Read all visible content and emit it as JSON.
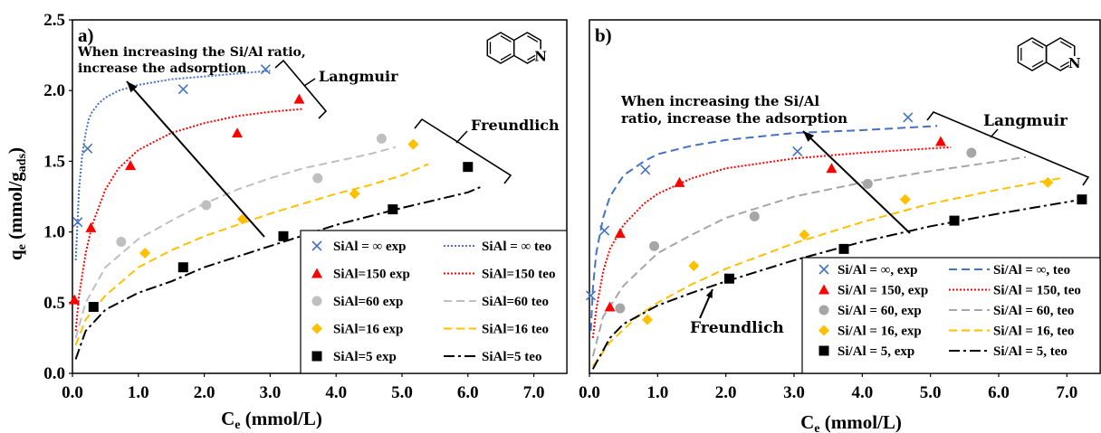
{
  "chart_data": [
    {
      "type": "scatter",
      "panel_label": "a)",
      "xlabel": "C",
      "xlabel_sub": "e",
      "xlabel_unit": " (mmol/L)",
      "ylabel": "q",
      "ylabel_sub": "e",
      "ylabel_unit": " (mmol/g",
      "ylabel_unit_sub": "ads",
      "ylabel_close": ")",
      "xlim": [
        0,
        7.5
      ],
      "ylim": [
        0,
        2.5
      ],
      "xticks": [
        "0.0",
        "1.0",
        "2.0",
        "3.0",
        "4.0",
        "5.0",
        "6.0",
        "7.0"
      ],
      "yticks": [
        "0.0",
        "0.5",
        "1.0",
        "1.5",
        "2.0",
        "2.5"
      ],
      "grid": false,
      "legend_placement": "bottom-right",
      "annotations": {
        "arrow_text": [
          "When increasing the Si/Al ratio,",
          "increase the adsorption"
        ],
        "langmuir": "Langmuir",
        "freundlich": "Freundlich",
        "molecule_atom": "N"
      },
      "series": [
        {
          "name": "SiAl = ∞ exp",
          "marker": "x",
          "color": "#4472C4",
          "x": [
            0.08,
            0.23,
            1.68,
            2.93
          ],
          "y": [
            1.07,
            1.59,
            2.01,
            2.15
          ]
        },
        {
          "name": "SiAl=150 exp",
          "marker": "triangle",
          "color": "#FF0000",
          "x": [
            0.03,
            0.28,
            0.88,
            2.5,
            3.44
          ],
          "y": [
            0.52,
            1.03,
            1.47,
            1.7,
            1.94
          ]
        },
        {
          "name": "SiAl=60 exp",
          "marker": "circle",
          "color": "#BFBFBF",
          "x": [
            0.74,
            2.03,
            3.72,
            4.69
          ],
          "y": [
            0.93,
            1.19,
            1.38,
            1.66
          ]
        },
        {
          "name": "SiAl=16 exp",
          "marker": "diamond",
          "color": "#FFC000",
          "x": [
            1.1,
            2.58,
            4.28,
            5.17
          ],
          "y": [
            0.85,
            1.09,
            1.27,
            1.62
          ]
        },
        {
          "name": "SiAl=5 exp",
          "marker": "square",
          "color": "#000000",
          "x": [
            0.32,
            1.68,
            3.2,
            4.86,
            6.0
          ],
          "y": [
            0.47,
            0.75,
            0.97,
            1.16,
            1.46
          ]
        },
        {
          "name": "SiAl = ∞ teo",
          "line": "dotted",
          "color": "#4472C4",
          "x": [
            0.05,
            0.1,
            0.15,
            0.2,
            0.25,
            0.3,
            0.4,
            0.5,
            0.7,
            1,
            1.5,
            2,
            2.5,
            3
          ],
          "y": [
            0.8,
            1.3,
            1.55,
            1.7,
            1.8,
            1.85,
            1.91,
            1.95,
            2.0,
            2.04,
            2.08,
            2.1,
            2.12,
            2.14
          ]
        },
        {
          "name": "SiAl=150 teo",
          "line": "dotted",
          "color": "#FF0000",
          "x": [
            0.05,
            0.1,
            0.2,
            0.3,
            0.5,
            0.7,
            1,
            1.5,
            2,
            2.5,
            3,
            3.5
          ],
          "y": [
            0.3,
            0.55,
            0.85,
            1.05,
            1.3,
            1.45,
            1.58,
            1.7,
            1.77,
            1.82,
            1.85,
            1.87
          ]
        },
        {
          "name": "SiAl=60 teo",
          "line": "dashed",
          "color": "#BFBFBF",
          "x": [
            0.05,
            0.2,
            0.5,
            1,
            1.5,
            2,
            2.5,
            3,
            3.5,
            4,
            4.5,
            4.9
          ],
          "y": [
            0.25,
            0.5,
            0.75,
            0.95,
            1.08,
            1.2,
            1.3,
            1.38,
            1.45,
            1.5,
            1.55,
            1.6
          ]
        },
        {
          "name": "SiAl=16 teo",
          "line": "dashed",
          "color": "#FFC000",
          "x": [
            0.05,
            0.2,
            0.5,
            1,
            1.5,
            2,
            2.5,
            3,
            3.5,
            4,
            4.5,
            5,
            5.4
          ],
          "y": [
            0.2,
            0.38,
            0.55,
            0.75,
            0.87,
            0.97,
            1.05,
            1.13,
            1.2,
            1.27,
            1.33,
            1.4,
            1.48
          ]
        },
        {
          "name": "SiAl=5 teo",
          "line": "dashdot",
          "color": "#000000",
          "x": [
            0.05,
            0.2,
            0.5,
            1,
            1.5,
            2,
            3,
            4,
            5,
            6,
            6.2
          ],
          "y": [
            0.1,
            0.3,
            0.45,
            0.57,
            0.65,
            0.75,
            0.9,
            1.05,
            1.17,
            1.28,
            1.32
          ]
        }
      ]
    },
    {
      "type": "scatter",
      "panel_label": "b)",
      "xlabel": "C",
      "xlabel_sub": "e",
      "xlabel_unit": " (mmol/L)",
      "xlim": [
        0,
        7.5
      ],
      "ylim": [
        0,
        2.5
      ],
      "xticks": [
        "0.0",
        "1.0",
        "2.0",
        "3.0",
        "4.0",
        "5.0",
        "6.0",
        "7.0"
      ],
      "grid": false,
      "legend_placement": "bottom-right",
      "annotations": {
        "arrow_text": [
          "When   increasing   the   Si/Al",
          "ratio, increase the adsorption"
        ],
        "langmuir": "Langmuir",
        "freundlich": "Freundlich",
        "molecule_atom": "N"
      },
      "series": [
        {
          "name": "Si/Al = ∞, exp",
          "marker": "x",
          "color": "#4472C4",
          "x": [
            0.02,
            0.22,
            0.82,
            3.05,
            4.67
          ],
          "y": [
            0.55,
            1.01,
            1.44,
            1.57,
            1.81
          ]
        },
        {
          "name": "Si/Al = 150, exp",
          "marker": "triangle",
          "color": "#FF0000",
          "x": [
            0.3,
            0.45,
            1.32,
            3.55,
            5.15
          ],
          "y": [
            0.47,
            0.99,
            1.35,
            1.45,
            1.64
          ]
        },
        {
          "name": "Si/Al = 60, exp",
          "marker": "circle",
          "color": "#A6A6A6",
          "x": [
            0.45,
            0.95,
            2.42,
            4.08,
            5.6
          ],
          "y": [
            0.46,
            0.9,
            1.11,
            1.34,
            1.56
          ]
        },
        {
          "name": "Si/Al = 16, exp",
          "marker": "diamond",
          "color": "#FFC000",
          "x": [
            0.85,
            1.53,
            3.15,
            4.63,
            6.72
          ],
          "y": [
            0.38,
            0.76,
            0.98,
            1.23,
            1.35
          ]
        },
        {
          "name": "Si/Al = 5, exp",
          "marker": "square",
          "color": "#000000",
          "x": [
            2.05,
            3.73,
            5.35,
            7.22
          ],
          "y": [
            0.67,
            0.88,
            1.08,
            1.23
          ]
        },
        {
          "name": "Si/Al = ∞, teo",
          "line": "dashed",
          "color": "#4472C4",
          "x": [
            0.02,
            0.05,
            0.1,
            0.2,
            0.3,
            0.5,
            0.8,
            1,
            1.5,
            2,
            3,
            4,
            5.1
          ],
          "y": [
            0.3,
            0.6,
            0.85,
            1.1,
            1.25,
            1.4,
            1.5,
            1.55,
            1.61,
            1.65,
            1.7,
            1.72,
            1.75
          ]
        },
        {
          "name": "Si/Al = 150, teo",
          "line": "dotted",
          "color": "#FF0000",
          "x": [
            0.05,
            0.1,
            0.2,
            0.3,
            0.5,
            0.8,
            1,
            1.5,
            2,
            3,
            4,
            5.3
          ],
          "y": [
            0.25,
            0.45,
            0.72,
            0.88,
            1.05,
            1.2,
            1.27,
            1.38,
            1.45,
            1.52,
            1.56,
            1.6
          ]
        },
        {
          "name": "Si/Al = 60, teo",
          "line": "dashed",
          "color": "#A6A6A6",
          "x": [
            0.05,
            0.2,
            0.5,
            1,
            1.5,
            2,
            3,
            4,
            5,
            6,
            6.4
          ],
          "y": [
            0.12,
            0.4,
            0.62,
            0.85,
            0.98,
            1.1,
            1.25,
            1.35,
            1.43,
            1.5,
            1.53
          ]
        },
        {
          "name": "Si/Al = 16, teo",
          "line": "dashed",
          "color": "#FFC000",
          "x": [
            0.05,
            0.3,
            0.7,
            1,
            1.5,
            2,
            3,
            4,
            5,
            6,
            6.9
          ],
          "y": [
            0.05,
            0.22,
            0.4,
            0.5,
            0.63,
            0.74,
            0.92,
            1.07,
            1.2,
            1.3,
            1.38
          ]
        },
        {
          "name": "Si/Al = 5, teo",
          "line": "dashdot",
          "color": "#000000",
          "x": [
            0.05,
            0.3,
            0.5,
            1,
            1.5,
            2,
            3,
            4,
            5,
            6,
            7.1
          ],
          "y": [
            0.03,
            0.25,
            0.35,
            0.48,
            0.57,
            0.65,
            0.8,
            0.93,
            1.04,
            1.13,
            1.22
          ]
        }
      ]
    }
  ]
}
